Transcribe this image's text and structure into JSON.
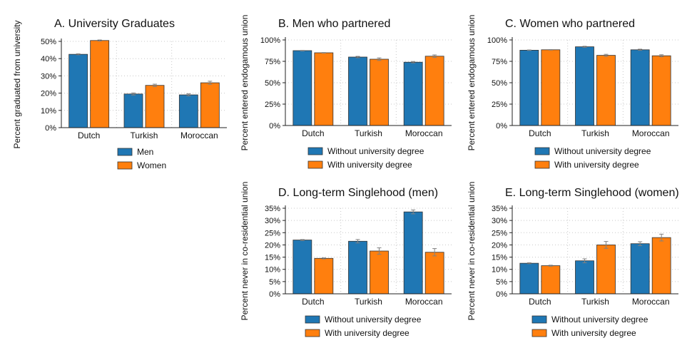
{
  "colors": {
    "series_a": "#1f77b4",
    "series_b": "#ff7f0e",
    "error_bar": "#808080",
    "grid": "#c8c8c8",
    "axis": "#222222"
  },
  "chart_data": [
    {
      "id": "A",
      "type": "bar",
      "title": "A. University Graduates",
      "ylabel": "Percent graduated from university",
      "categories": [
        "Dutch",
        "Turkish",
        "Moroccan"
      ],
      "ylim": [
        0,
        50
      ],
      "yticks": [
        0,
        10,
        20,
        30,
        40,
        50
      ],
      "yticklabels": [
        "0%",
        "10%",
        "20%",
        "30%",
        "40%",
        "50%"
      ],
      "grid": true,
      "legend_position": "bottom",
      "series": [
        {
          "name": "Men",
          "values": [
            42.5,
            19.5,
            19.0
          ],
          "errors": [
            0.3,
            0.6,
            0.6
          ]
        },
        {
          "name": "Women",
          "values": [
            50.5,
            24.5,
            26.0
          ],
          "errors": [
            0.3,
            0.7,
            0.9
          ]
        }
      ]
    },
    {
      "id": "B",
      "type": "bar",
      "title": "B. Men who partnered",
      "ylabel": "Percent entered endogamous union",
      "categories": [
        "Dutch",
        "Turkish",
        "Moroccan"
      ],
      "ylim": [
        0,
        100
      ],
      "yticks": [
        0,
        25,
        50,
        75,
        100
      ],
      "yticklabels": [
        "0%",
        "25%",
        "50%",
        "75%",
        "100%"
      ],
      "grid": true,
      "legend_position": "bottom",
      "series": [
        {
          "name": "Without university degree",
          "values": [
            87.5,
            80.0,
            74.0
          ],
          "errors": [
            0.3,
            0.8,
            0.8
          ]
        },
        {
          "name": "With university degree",
          "values": [
            85.0,
            77.5,
            81.0
          ],
          "errors": [
            0.3,
            1.5,
            1.5
          ]
        }
      ]
    },
    {
      "id": "C",
      "type": "bar",
      "title": "C. Women who partnered",
      "ylabel": "Percent entered endogamous union",
      "categories": [
        "Dutch",
        "Turkish",
        "Moroccan"
      ],
      "ylim": [
        0,
        100
      ],
      "yticks": [
        0,
        25,
        50,
        75,
        100
      ],
      "yticklabels": [
        "0%",
        "25%",
        "50%",
        "75%",
        "100%"
      ],
      "grid": true,
      "legend_position": "bottom",
      "series": [
        {
          "name": "Without university degree",
          "values": [
            88.0,
            92.0,
            88.5
          ],
          "errors": [
            0.3,
            0.6,
            0.7
          ]
        },
        {
          "name": "With university degree",
          "values": [
            88.5,
            82.0,
            81.5
          ],
          "errors": [
            0.3,
            1.2,
            1.2
          ]
        }
      ]
    },
    {
      "id": "D",
      "type": "bar",
      "title": "D. Long-term Singlehood (men)",
      "ylabel": "Percent never in co-residential union",
      "categories": [
        "Dutch",
        "Turkish",
        "Moroccan"
      ],
      "ylim": [
        0,
        35
      ],
      "yticks": [
        0,
        5,
        10,
        15,
        20,
        25,
        30,
        35
      ],
      "yticklabels": [
        "0%",
        "5%",
        "10%",
        "15%",
        "20%",
        "25%",
        "30%",
        "35%"
      ],
      "grid": true,
      "legend_position": "bottom",
      "series": [
        {
          "name": "Without university degree",
          "values": [
            22.0,
            21.5,
            33.5
          ],
          "errors": [
            0.2,
            0.7,
            0.8
          ]
        },
        {
          "name": "With university degree",
          "values": [
            14.5,
            17.5,
            17.0
          ],
          "errors": [
            0.2,
            1.3,
            1.5
          ]
        }
      ]
    },
    {
      "id": "E",
      "type": "bar",
      "title": "E. Long-term Singlehood (women)",
      "ylabel": "Percent never in co-residential union",
      "categories": [
        "Dutch",
        "Turkish",
        "Moroccan"
      ],
      "ylim": [
        0,
        35
      ],
      "yticks": [
        0,
        5,
        10,
        15,
        20,
        25,
        30,
        35
      ],
      "yticklabels": [
        "0%",
        "5%",
        "10%",
        "15%",
        "20%",
        "25%",
        "30%",
        "35%"
      ],
      "grid": true,
      "legend_position": "bottom",
      "series": [
        {
          "name": "Without university degree",
          "values": [
            12.5,
            13.5,
            20.5
          ],
          "errors": [
            0.2,
            0.8,
            0.8
          ]
        },
        {
          "name": "With university degree",
          "values": [
            11.5,
            20.0,
            23.0
          ],
          "errors": [
            0.2,
            1.4,
            1.4
          ]
        }
      ]
    }
  ]
}
